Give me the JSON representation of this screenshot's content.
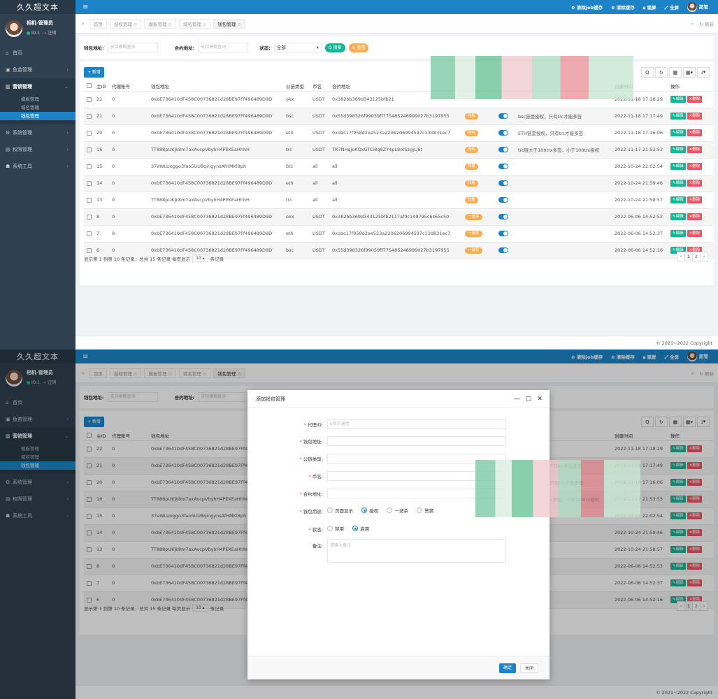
{
  "app": {
    "brand": "久久超文本",
    "menu_toggle": "≡",
    "user_name": "相机-管理员",
    "user_id": "ID:1",
    "logout": "注销",
    "top_actions": [
      "清除job缓存",
      "清除缓存",
      "锁屏",
      "全屏"
    ],
    "top_user": "超管"
  },
  "sidebar": {
    "items": [
      {
        "icon": "⌂",
        "label": "首页"
      },
      {
        "icon": "▣",
        "label": "鱼苗管理"
      },
      {
        "icon": "▥",
        "label": "营销管理"
      },
      {
        "icon": "⚙",
        "label": "系统管理"
      },
      {
        "icon": "▤",
        "label": "权限管理"
      },
      {
        "icon": "☗",
        "label": "系统工具"
      }
    ],
    "subitems": [
      "模板管理",
      "域名管理",
      "钱包管理"
    ],
    "arrow": "‹",
    "arrow_open": "⌄"
  },
  "tabs": {
    "prev": "«",
    "items": [
      "首页",
      "授权管理",
      "模板管理",
      "域名管理",
      "钱包管理"
    ],
    "next": "»",
    "refresh": "刷新",
    "close_mark": "⊙"
  },
  "search": {
    "wallet_label": "钱包地址:",
    "wallet_placeholder": "支持模糊查询",
    "contract_label": "合约地址:",
    "contract_placeholder": "支持模糊查询",
    "status_label": "状态:",
    "status_value": "全部",
    "search_btn": "搜索",
    "reset_btn": "重置"
  },
  "toolbar": {
    "add": "+ 新增",
    "icons": [
      "Q",
      "↻",
      "▦",
      "▦▾",
      "⤓▾"
    ]
  },
  "table": {
    "headers": [
      "",
      "主ID",
      "代理账号",
      "钱包地址",
      "公链类型",
      "币名",
      "合约地址",
      "",
      "",
      "",
      "创建时间",
      "操作"
    ],
    "rows": [
      {
        "id": "22",
        "agent": "0",
        "wallet": "0xbE736410dF458C00736821d28BE97Ff496489D9D",
        "chain": "okx",
        "coin": "USDT",
        "contract": "0x382bb369d343125bfb21",
        "badge": "",
        "toggle": false,
        "note": "",
        "time": "2022-11-18 17:18:29"
      },
      {
        "id": "21",
        "agent": "0",
        "wallet": "0xbE736410dF458C00736821d28BE97Ff496489D9D",
        "chain": "bsc",
        "coin": "USDT",
        "contract": "0x55d398326f99059ff775485246999027b3197955",
        "badge": "授权",
        "toggle": true,
        "note": "bsc链是授权，只有trc才能多签",
        "time": "2022-11-18 17:17:49"
      },
      {
        "id": "20",
        "agent": "0",
        "wallet": "0xbE736410dF458C00736821d28BE97Ff496489D9D",
        "chain": "eth",
        "coin": "USDT",
        "contract": "0xdac17f958d2ee523a2206206994597c13d831ec7",
        "badge": "授权",
        "toggle": true,
        "note": "ETH链是授权，只有trc才能多签",
        "time": "2022-11-18 17:16:06"
      },
      {
        "id": "16",
        "agent": "0",
        "wallet": "TT888pUKjk8m7axAvcpVbyhH4PEKEaHhhH",
        "chain": "trc",
        "coin": "USDT",
        "contract": "TR7NHqjeKQxGTCi8q8ZY4pL8otSzgjLj6t",
        "badge": "授权",
        "toggle": true,
        "note": "trc链大于100trx多签，小于100trx授权",
        "time": "2022-11-17 21:53:53"
      },
      {
        "id": "15",
        "agent": "0",
        "wallet": "37eWLUoggo3fao5UU8qingynsAfHMKl8ph",
        "chain": "btc",
        "coin": "all",
        "contract": "all",
        "badge": "转账",
        "toggle": true,
        "note": "",
        "time": "2022-10-24 22:02:54"
      },
      {
        "id": "14",
        "agent": "0",
        "wallet": "0xbE736410dF458C00736821d28BE97Ff496489D9D",
        "chain": "eth",
        "coin": "all",
        "contract": "all",
        "badge": "转账",
        "toggle": true,
        "note": "",
        "time": "2022-10-24 21:59:46"
      },
      {
        "id": "13",
        "agent": "0",
        "wallet": "TT888pUKjk8m7axAvcpVbyhH4PEKEaHhhH",
        "chain": "trc",
        "coin": "all",
        "contract": "all",
        "badge": "转账",
        "toggle": true,
        "note": "",
        "time": "2022-10-24 21:58:57"
      },
      {
        "id": "8",
        "agent": "0",
        "wallet": "0xbE736410dF458C00736821d28BE97Ff496489D9D",
        "chain": "okx",
        "coin": "USDT",
        "contract": "0x382bb369d343125bfb2117af9c149795c6c65c50",
        "badge": "一波杀",
        "toggle": true,
        "note": "",
        "time": "2022-06-06 14:52:53"
      },
      {
        "id": "7",
        "agent": "0",
        "wallet": "0xbE736410dF458C00736821d28BE97Ff496489D9D",
        "chain": "eth",
        "coin": "USDT",
        "contract": "0xdac17f958d2ee523a2206206994597c13d831ec7",
        "badge": "一波杀",
        "toggle": true,
        "note": "",
        "time": "2022-06-06 14:52:37"
      },
      {
        "id": "6",
        "agent": "0",
        "wallet": "0xbE736410dF458C00736821d28BE97Ff496489D9D",
        "chain": "bsc",
        "coin": "USDT",
        "contract": "0x55d398326f99059ff775485246999027b3197955",
        "badge": "一波杀",
        "toggle": true,
        "note": "",
        "time": "2022-06-06 14:52:16"
      }
    ],
    "edit": "编辑",
    "delete": "删除"
  },
  "pagination": {
    "text_before": "显示第 1 到第 10 条记录，总共 15 条记录  每页显示",
    "page_size": "10 ▴",
    "text_after": "条记录",
    "prev": "‹",
    "pages": [
      "1",
      "2"
    ],
    "next": "›"
  },
  "footer": "© 2021~2022 Copyright",
  "modal": {
    "title": "添加钱包管理",
    "controls": [
      "—",
      "▢",
      "✕"
    ],
    "fields": [
      {
        "label": "代理ID:",
        "placeholder": "0表示通用"
      },
      {
        "label": "钱包地址:",
        "placeholder": ""
      },
      {
        "label": "公链类型:",
        "placeholder": ""
      },
      {
        "label": "币名:",
        "placeholder": ""
      },
      {
        "label": "合约地址:",
        "placeholder": ""
      }
    ],
    "usage_label": "钱包用途:",
    "usage_options": [
      "页面显示",
      "授权",
      "一波杀",
      "警猜"
    ],
    "status_label": "状态:",
    "status_options": [
      "禁用",
      "启用"
    ],
    "remark_label": "备注:",
    "remark_placeholder": "请输入备注",
    "ok": "确定",
    "close": "关闭"
  },
  "colors": {
    "sidebar": "#2f4050",
    "topbar": "#1c84c6",
    "success": "#1ab394",
    "warning": "#f8ac59",
    "danger": "#ed5565"
  }
}
